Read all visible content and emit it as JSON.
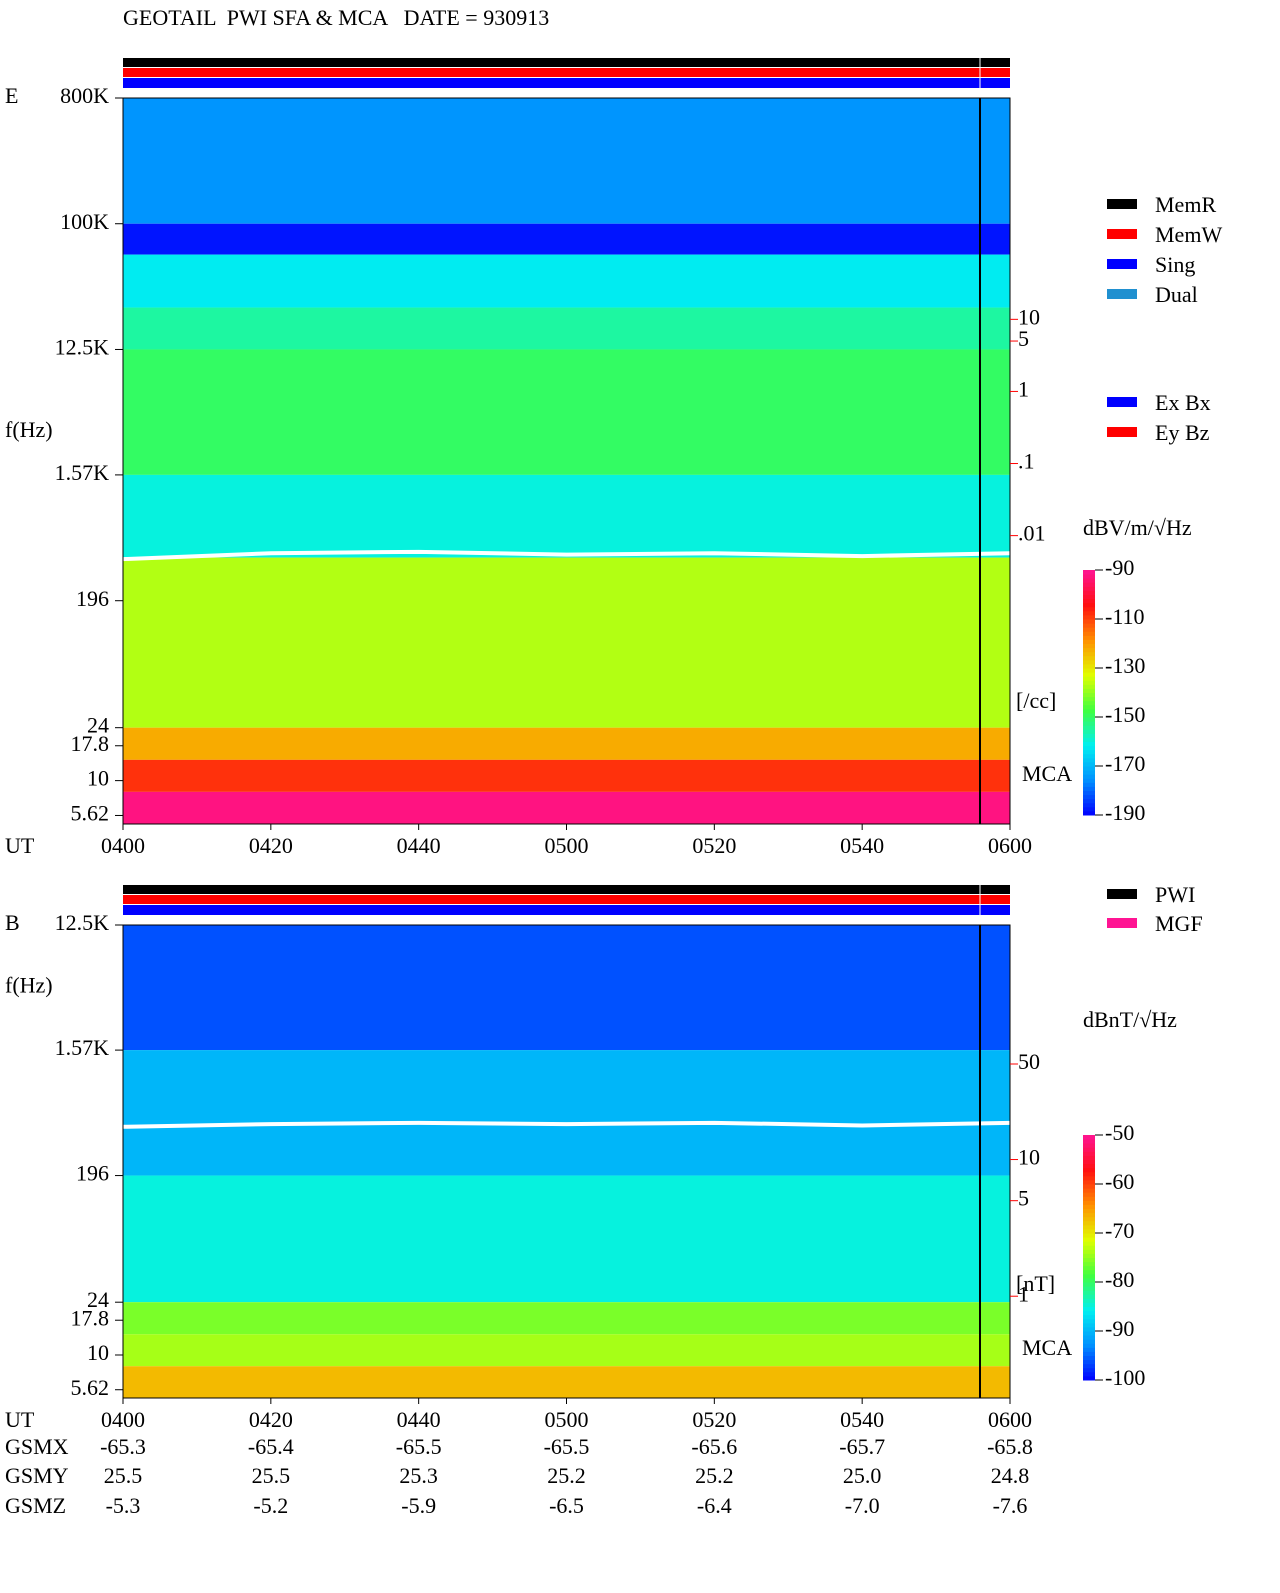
{
  "title": "GEOTAIL  PWI SFA & MCA   DATE = 930913",
  "chart_data": [
    {
      "type": "spectrogram",
      "panel": "E",
      "ylabel": "f(Hz)",
      "xlabel": "UT",
      "mca_label": "MCA",
      "log_scale": true,
      "xlim": [
        240,
        360
      ],
      "xticks": [
        {
          "value": 240,
          "label": "0400"
        },
        {
          "value": 260,
          "label": "0420"
        },
        {
          "value": 280,
          "label": "0440"
        },
        {
          "value": 300,
          "label": "0500"
        },
        {
          "value": 320,
          "label": "0520"
        },
        {
          "value": 340,
          "label": "0540"
        },
        {
          "value": 360,
          "label": "0600"
        }
      ],
      "ylim": [
        4.88,
        800000
      ],
      "yticks": [
        {
          "value": 800000,
          "label": "800K"
        },
        {
          "value": 100000,
          "label": "100K"
        },
        {
          "value": 12500,
          "label": "12.5K"
        },
        {
          "value": 1570,
          "label": "1.57K"
        },
        196,
        24,
        17.8,
        10,
        5.62
      ],
      "y2lim": [
        1e-06,
        11750
      ],
      "y2color": "#ff0000",
      "y2label": "[/cc]",
      "y2ticks": [
        10,
        5,
        1,
        {
          "value": 0.1,
          "label": ".1"
        },
        {
          "value": 0.01,
          "label": ".01"
        }
      ],
      "colorbar": {
        "label": "dBV/m/√Hz",
        "lim": [
          -190,
          -90
        ],
        "ticks": [
          -90,
          -110,
          -130,
          -150,
          -170,
          -190
        ],
        "colormap": [
          "#0000ff",
          "#0090ff",
          "#00f0f0",
          "#40ff40",
          "#e0ff00",
          "#ff9000",
          "#ff1010",
          "#ff1493"
        ]
      },
      "legend": [
        {
          "name": "MemR",
          "color": "#000000"
        },
        {
          "name": "MemW",
          "color": "#ff0000"
        },
        {
          "name": "Sing",
          "color": "#0000ff"
        },
        {
          "name": "Dual",
          "color": "#2090d0"
        }
      ],
      "legend2": [
        {
          "name": "Ex Bx",
          "color": "#0000ff"
        },
        {
          "name": "Ey Bz",
          "color": "#ff0000"
        }
      ],
      "bands": [
        {
          "f": [
            100000,
            800000
          ],
          "level": -175
        },
        {
          "f": [
            60000,
            100000
          ],
          "level": -188
        },
        {
          "f": [
            25000,
            60000
          ],
          "level": -162
        },
        {
          "f": [
            12500,
            25000
          ],
          "level": -155
        },
        {
          "f": [
            1570,
            12500
          ],
          "level": -150
        },
        {
          "f": [
            400,
            1570
          ],
          "level": -160
        },
        {
          "f": [
            24,
            400
          ],
          "level": -137
        },
        {
          "f": [
            14.1,
            24
          ],
          "level": -122
        },
        {
          "f": [
            8.3,
            14.1
          ],
          "level": -108
        },
        {
          "f": [
            4.88,
            8.3
          ],
          "level": -92
        }
      ],
      "trace": {
        "color": "#ffffff",
        "x": [
          240,
          260,
          280,
          300,
          320,
          340,
          360
        ],
        "values": [
          390,
          430,
          440,
          420,
          430,
          410,
          430
        ]
      }
    },
    {
      "type": "spectrogram",
      "panel": "B",
      "ylabel": "f(Hz)",
      "xlabel": "UT",
      "mca_label": "MCA",
      "log_scale": true,
      "xlim": [
        240,
        360
      ],
      "xticks": [
        {
          "value": 240,
          "label": "0400"
        },
        {
          "value": 260,
          "label": "0420"
        },
        {
          "value": 280,
          "label": "0440"
        },
        {
          "value": 300,
          "label": "0500"
        },
        {
          "value": 320,
          "label": "0520"
        },
        {
          "value": 340,
          "label": "0540"
        },
        {
          "value": 360,
          "label": "0600"
        }
      ],
      "ylim": [
        4.9,
        12500
      ],
      "yticks": [
        {
          "value": 12500,
          "label": "12.5K"
        },
        {
          "value": 1570,
          "label": "1.57K"
        },
        196,
        24,
        17.8,
        10,
        5.62
      ],
      "y2lim": [
        0.18,
        520
      ],
      "y2color": "#ff0000",
      "y2label": "[nT]",
      "y2ticks": [
        50,
        10,
        5,
        1
      ],
      "colorbar": {
        "label": "dBnT/√Hz",
        "lim": [
          -100,
          -50
        ],
        "ticks": [
          -50,
          -60,
          -70,
          -80,
          -90,
          -100
        ],
        "colormap": [
          "#0000ff",
          "#0090ff",
          "#00f0f0",
          "#40ff40",
          "#e0ff00",
          "#ff9000",
          "#ff1010",
          "#ff1493"
        ]
      },
      "legend": [
        {
          "name": "PWI",
          "color": "#000000"
        },
        {
          "name": "MGF",
          "color": "#ff1493"
        }
      ],
      "bands": [
        {
          "f": [
            1570,
            12500
          ],
          "level": -96
        },
        {
          "f": [
            196,
            1570
          ],
          "level": -90
        },
        {
          "f": [
            24,
            196
          ],
          "level": -85
        },
        {
          "f": [
            14.1,
            24
          ],
          "level": -76
        },
        {
          "f": [
            8.3,
            14.1
          ],
          "level": -74
        },
        {
          "f": [
            4.9,
            8.3
          ],
          "level": -67
        }
      ],
      "trace": {
        "color": "#ffffff",
        "x": [
          240,
          260,
          280,
          300,
          320,
          340,
          360
        ],
        "values": [
          440,
          460,
          470,
          460,
          470,
          450,
          470
        ]
      }
    }
  ],
  "orbit": {
    "labels": [
      "GSMX",
      "GSMY",
      "GSMZ"
    ],
    "rows": [
      [
        "-65.3",
        "-65.4",
        "-65.5",
        "-65.5",
        "-65.6",
        "-65.7",
        "-65.8"
      ],
      [
        "25.5",
        "25.5",
        "25.3",
        "25.2",
        "25.2",
        "25.0",
        "24.8"
      ],
      [
        "-5.3",
        "-5.2",
        "-5.9",
        "-6.5",
        "-6.4",
        "-7.0",
        "-7.6"
      ]
    ]
  }
}
